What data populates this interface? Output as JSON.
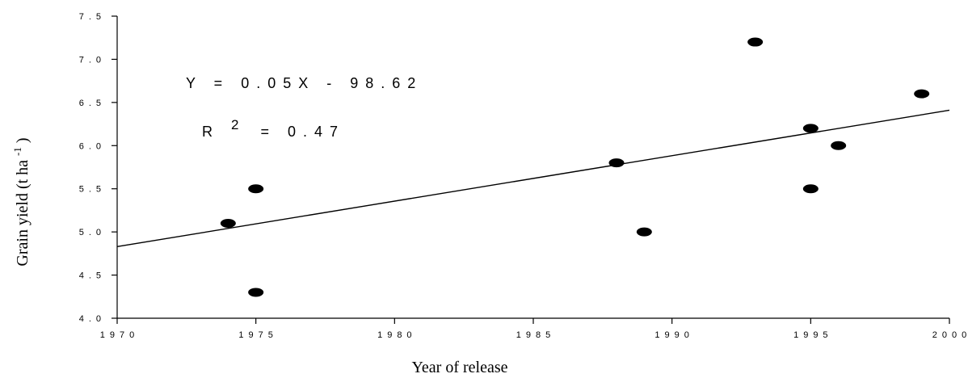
{
  "chart_data": {
    "type": "scatter",
    "xlabel": "Year of release",
    "ylabel_main": "Grain yield (t ha",
    "ylabel_sup": "-1",
    "ylabel_close": ")",
    "xlim": [
      1970,
      2000
    ],
    "ylim": [
      4.0,
      7.5
    ],
    "x_ticks": [
      1970,
      1975,
      1980,
      1985,
      1990,
      1995,
      2000
    ],
    "x_tick_labels": [
      "1970",
      "1975",
      "1980",
      "1985",
      "1990",
      "1995",
      "2000"
    ],
    "y_ticks": [
      4.0,
      4.5,
      5.0,
      5.5,
      6.0,
      6.5,
      7.0,
      7.5
    ],
    "y_tick_labels": [
      "4.0",
      "4.5",
      "5.0",
      "5.5",
      "6.0",
      "6.5",
      "7.0",
      "7.5"
    ],
    "points": [
      {
        "x": 1974,
        "y": 5.1
      },
      {
        "x": 1975,
        "y": 5.5
      },
      {
        "x": 1975,
        "y": 4.3
      },
      {
        "x": 1988,
        "y": 5.8
      },
      {
        "x": 1989,
        "y": 5.0
      },
      {
        "x": 1993,
        "y": 7.2
      },
      {
        "x": 1995,
        "y": 6.2
      },
      {
        "x": 1995,
        "y": 5.5
      },
      {
        "x": 1996,
        "y": 6.0
      },
      {
        "x": 1999,
        "y": 6.6
      }
    ],
    "trendline": {
      "x": [
        1970,
        2000
      ],
      "y": [
        4.83,
        6.41
      ]
    },
    "equation": "Y = 0.05X - 98.62",
    "r2_label": "R",
    "r2_sup": "2",
    "r2_value": "= 0.47",
    "grid": false
  }
}
